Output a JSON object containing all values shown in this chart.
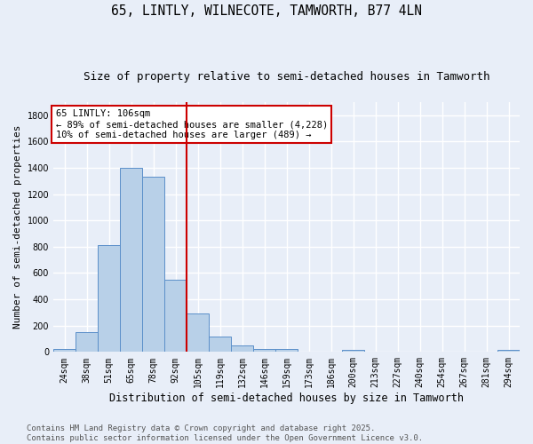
{
  "title": "65, LINTLY, WILNECOTE, TAMWORTH, B77 4LN",
  "subtitle": "Size of property relative to semi-detached houses in Tamworth",
  "xlabel": "Distribution of semi-detached houses by size in Tamworth",
  "ylabel": "Number of semi-detached properties",
  "categories": [
    "24sqm",
    "38sqm",
    "51sqm",
    "65sqm",
    "78sqm",
    "92sqm",
    "105sqm",
    "119sqm",
    "132sqm",
    "146sqm",
    "159sqm",
    "173sqm",
    "186sqm",
    "200sqm",
    "213sqm",
    "227sqm",
    "240sqm",
    "254sqm",
    "267sqm",
    "281sqm",
    "294sqm"
  ],
  "values": [
    20,
    150,
    810,
    1400,
    1330,
    550,
    295,
    120,
    50,
    25,
    25,
    0,
    0,
    15,
    0,
    0,
    0,
    0,
    0,
    0,
    15
  ],
  "bar_color": "#b8d0e8",
  "bar_edge_color": "#5b8fc9",
  "background_color": "#e8eef8",
  "grid_color": "#ffffff",
  "vline_color": "#cc0000",
  "vline_x_index": 6,
  "annotation_line1": "65 LINTLY: 106sqm",
  "annotation_line2": "← 89% of semi-detached houses are smaller (4,228)",
  "annotation_line3": "10% of semi-detached houses are larger (489) →",
  "annotation_box_color": "#ffffff",
  "annotation_box_edge": "#cc0000",
  "footer_line1": "Contains HM Land Registry data © Crown copyright and database right 2025.",
  "footer_line2": "Contains public sector information licensed under the Open Government Licence v3.0.",
  "ylim": [
    0,
    1900
  ],
  "yticks": [
    0,
    200,
    400,
    600,
    800,
    1000,
    1200,
    1400,
    1600,
    1800
  ],
  "title_fontsize": 10.5,
  "subtitle_fontsize": 9,
  "ylabel_fontsize": 8,
  "xlabel_fontsize": 8.5,
  "footer_fontsize": 6.5,
  "tick_fontsize": 7,
  "annot_fontsize": 7.5
}
